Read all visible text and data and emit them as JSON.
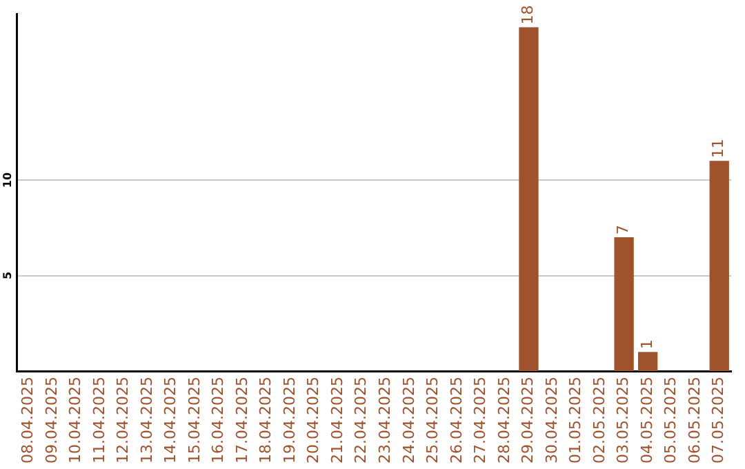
{
  "chart_data": {
    "type": "bar",
    "categories": [
      "08.04.2025",
      "09.04.2025",
      "10.04.2025",
      "11.04.2025",
      "12.04.2025",
      "13.04.2025",
      "14.04.2025",
      "15.04.2025",
      "16.04.2025",
      "17.04.2025",
      "18.04.2025",
      "19.04.2025",
      "20.04.2025",
      "21.04.2025",
      "22.04.2025",
      "23.04.2025",
      "24.04.2025",
      "25.04.2025",
      "26.04.2025",
      "27.04.2025",
      "28.04.2025",
      "29.04.2025",
      "30.04.2025",
      "01.05.2025",
      "02.05.2025",
      "03.05.2025",
      "04.05.2025",
      "05.05.2025",
      "06.05.2025",
      "07.05.2025"
    ],
    "values": [
      0,
      0,
      0,
      0,
      0,
      0,
      0,
      0,
      0,
      0,
      0,
      0,
      0,
      0,
      0,
      0,
      0,
      0,
      0,
      0,
      0,
      18,
      0,
      0,
      0,
      7,
      1,
      0,
      0,
      11
    ],
    "value_labels": [
      null,
      null,
      null,
      null,
      null,
      null,
      null,
      null,
      null,
      null,
      null,
      null,
      null,
      null,
      null,
      null,
      null,
      null,
      null,
      null,
      null,
      "18",
      null,
      null,
      null,
      "7",
      "1",
      null,
      null,
      "11"
    ],
    "color": "#a0522d",
    "ylim": [
      0,
      18.7
    ],
    "yticks": [
      5,
      10
    ],
    "grid": "y"
  }
}
